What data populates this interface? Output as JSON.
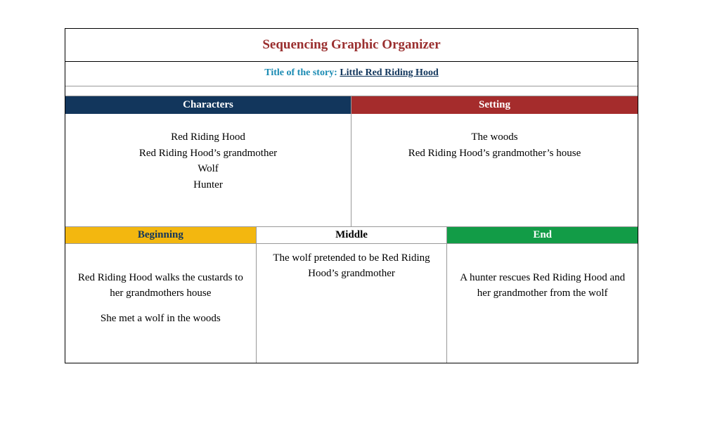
{
  "colors": {
    "title": "#9a2f2f",
    "subtitle_label": "#1a8bb3",
    "subtitle_value": "#12365c",
    "characters_bg": "#12365c",
    "setting_bg": "#a52c2c",
    "beginning_bg": "#f3b70f",
    "beginning_fg": "#12365c",
    "middle_bg": "#ffffff",
    "middle_fg": "#000000",
    "end_bg": "#129c47",
    "end_fg": "#ffffff",
    "header_fg": "#ffffff"
  },
  "title": "Sequencing Graphic Organizer",
  "subtitle": {
    "label": "Title of the story",
    "value": "Little Red Riding Hood"
  },
  "sections2": {
    "characters": {
      "header": "Characters",
      "lines": "Red Riding Hood\nRed Riding Hood’s grandmother\nWolf\nHunter"
    },
    "setting": {
      "header": "Setting",
      "lines": "The woods\nRed Riding Hood’s grandmother’s house"
    }
  },
  "sections3": {
    "beginning": {
      "header": "Beginning",
      "p1": "Red Riding Hood walks the custards to her grandmothers house",
      "p2": "She met a wolf in the woods"
    },
    "middle": {
      "header": "Middle",
      "p1": "The wolf pretended to be Red Riding Hood’s grandmother"
    },
    "end": {
      "header": "End",
      "p1": "A hunter rescues Red Riding Hood and her grandmother from the wolf"
    }
  }
}
